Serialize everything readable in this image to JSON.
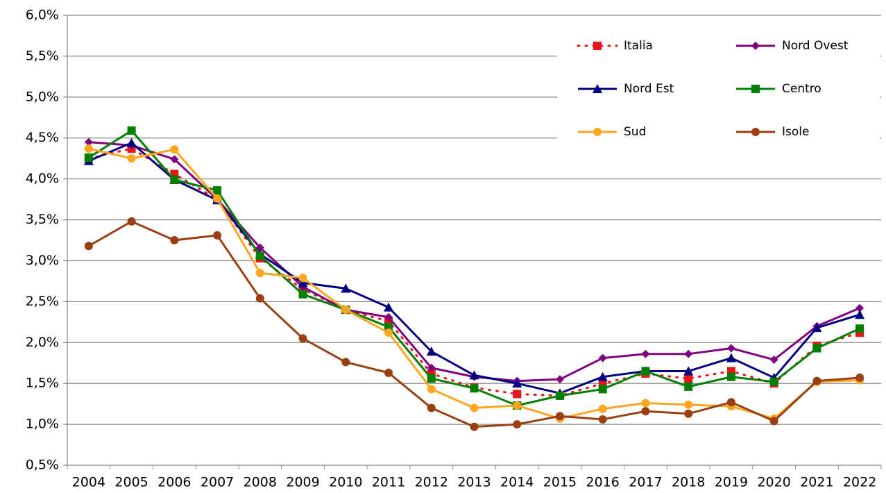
{
  "chart_data": {
    "type": "line",
    "categories": [
      "2004",
      "2005",
      "2006",
      "2007",
      "2008",
      "2009",
      "2010",
      "2011",
      "2012",
      "2013",
      "2014",
      "2015",
      "2016",
      "2017",
      "2018",
      "2019",
      "2020",
      "2021",
      "2022"
    ],
    "series": [
      {
        "name": "Italia",
        "color": "#e8161b",
        "marker": "square",
        "dashed": true,
        "values": [
          4.25,
          4.37,
          4.06,
          3.75,
          3.03,
          2.65,
          2.4,
          2.26,
          1.62,
          1.45,
          1.37,
          1.35,
          1.5,
          1.62,
          1.56,
          1.65,
          1.5,
          1.96,
          2.12
        ]
      },
      {
        "name": "Nord Ovest",
        "color": "#800080",
        "marker": "diamond",
        "dashed": false,
        "values": [
          4.45,
          4.41,
          4.24,
          3.75,
          3.16,
          2.68,
          2.4,
          2.31,
          1.69,
          1.58,
          1.53,
          1.55,
          1.81,
          1.86,
          1.86,
          1.93,
          1.79,
          2.2,
          2.42
        ]
      },
      {
        "name": "Nord Est",
        "color": "#000080",
        "marker": "triangle",
        "dashed": false,
        "values": [
          4.22,
          4.44,
          3.99,
          3.74,
          3.08,
          2.73,
          2.66,
          2.43,
          1.89,
          1.6,
          1.5,
          1.38,
          1.58,
          1.65,
          1.65,
          1.81,
          1.57,
          2.18,
          2.34
        ]
      },
      {
        "name": "Centro",
        "color": "#008000",
        "marker": "square",
        "dashed": false,
        "values": [
          4.26,
          4.59,
          3.99,
          3.86,
          3.06,
          2.59,
          2.4,
          2.19,
          1.56,
          1.44,
          1.23,
          1.35,
          1.43,
          1.65,
          1.46,
          1.58,
          1.52,
          1.93,
          2.17
        ]
      },
      {
        "name": "Sud",
        "color": "#ffa520",
        "marker": "circle",
        "dashed": false,
        "values": [
          4.37,
          4.25,
          4.36,
          3.76,
          2.85,
          2.79,
          2.4,
          2.12,
          1.43,
          1.2,
          1.23,
          1.07,
          1.19,
          1.26,
          1.24,
          1.22,
          1.07,
          1.52,
          1.54
        ]
      },
      {
        "name": "Isole",
        "color": "#9a3f12",
        "marker": "circle",
        "dashed": false,
        "values": [
          3.18,
          3.48,
          3.25,
          3.31,
          2.54,
          2.05,
          1.76,
          1.63,
          1.2,
          0.97,
          1.0,
          1.1,
          1.06,
          1.16,
          1.13,
          1.27,
          1.04,
          1.53,
          1.57
        ]
      }
    ],
    "ylim": [
      0.5,
      6.0
    ],
    "yticks": [
      {
        "value": 0.5,
        "label": "0,5%"
      },
      {
        "value": 1.0,
        "label": "1,0%"
      },
      {
        "value": 1.5,
        "label": "1,5%"
      },
      {
        "value": 2.0,
        "label": "2,0%"
      },
      {
        "value": 2.5,
        "label": "2,5%"
      },
      {
        "value": 3.0,
        "label": "3,0%"
      },
      {
        "value": 3.5,
        "label": "3,5%"
      },
      {
        "value": 4.0,
        "label": "4,0%"
      },
      {
        "value": 4.5,
        "label": "4,5%"
      },
      {
        "value": 5.0,
        "label": "5,0%"
      },
      {
        "value": 5.5,
        "label": "5,5%"
      },
      {
        "value": 6.0,
        "label": "6,0%"
      }
    ],
    "grid": true,
    "legend": "upper right"
  }
}
